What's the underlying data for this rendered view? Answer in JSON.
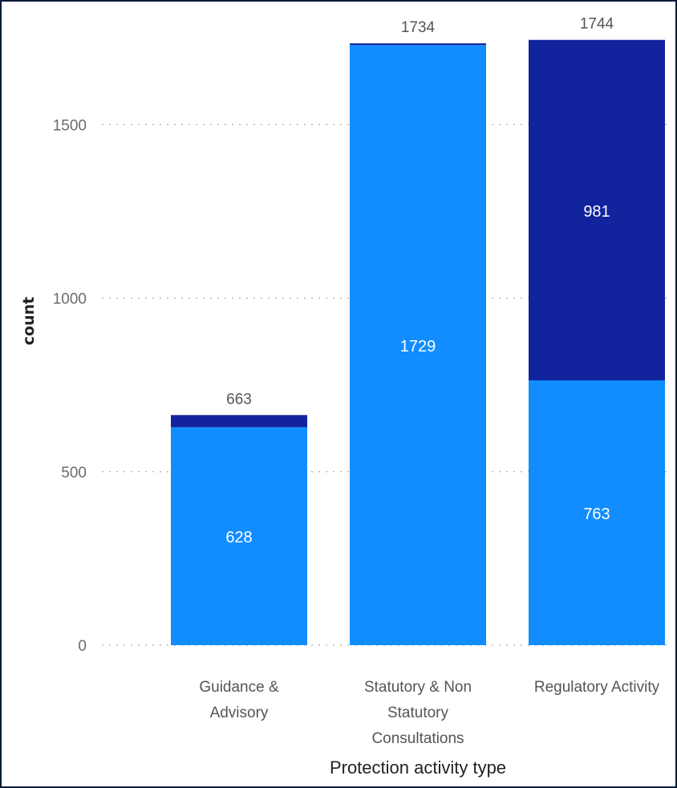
{
  "chart_data": {
    "type": "bar",
    "stacked": true,
    "categories": [
      [
        "Guidance &",
        "Advisory"
      ],
      [
        "Statutory & Non",
        "Statutory",
        "Consultations"
      ],
      [
        "Regulatory Activity"
      ]
    ],
    "category_names": [
      "Guidance & Advisory",
      "Statutory & Non Statutory Consultations",
      "Regulatory Activity"
    ],
    "series": [
      {
        "color": "#118dff",
        "values": [
          628,
          1729,
          763
        ],
        "labels": [
          "628",
          "1729",
          "763"
        ]
      },
      {
        "color": "#12239e",
        "values": [
          35,
          5,
          981
        ],
        "labels": [
          "",
          "",
          "981"
        ]
      }
    ],
    "totals": [
      663,
      1734,
      1744
    ],
    "total_labels": [
      "663",
      "1734",
      "1744"
    ],
    "xlabel": "Protection activity type",
    "ylabel": "count",
    "ylim": [
      0,
      1780
    ],
    "yticks": [
      0,
      500,
      1000,
      1500
    ],
    "ytick_labels": [
      "0",
      "500",
      "1000",
      "1500"
    ],
    "grid": "dotted-horizontal",
    "legend": "none"
  }
}
